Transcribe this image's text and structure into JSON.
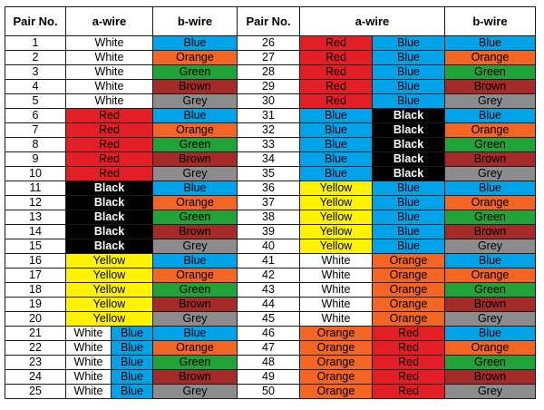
{
  "headers": [
    "Pair No.",
    "a-wire",
    "b-wire",
    "Pair No.",
    "a-wire",
    "b-wire"
  ],
  "colors": {
    "White": {
      "bg": "#ffffff",
      "fg": "#000000",
      "bold": false
    },
    "Blue": {
      "bg": "#00a2e8",
      "fg": "#000000",
      "bold": false
    },
    "Orange": {
      "bg": "#f26522",
      "fg": "#000000",
      "bold": false
    },
    "Green": {
      "bg": "#22a33a",
      "fg": "#000000",
      "bold": false
    },
    "Brown": {
      "bg": "#a52a2a",
      "fg": "#000000",
      "bold": false
    },
    "Grey": {
      "bg": "#8c8c8c",
      "fg": "#000000",
      "bold": false
    },
    "Red": {
      "bg": "#e31e24",
      "fg": "#000000",
      "bold": false
    },
    "Black": {
      "bg": "#000000",
      "fg": "#ffffff",
      "bold": true
    },
    "Yellow": {
      "bg": "#fff200",
      "fg": "#000000",
      "bold": false
    }
  },
  "pairs_left": [
    {
      "pair": "1",
      "a": [
        "White"
      ],
      "b": "Blue"
    },
    {
      "pair": "2",
      "a": [
        "White"
      ],
      "b": "Orange"
    },
    {
      "pair": "3",
      "a": [
        "White"
      ],
      "b": "Green"
    },
    {
      "pair": "4",
      "a": [
        "White"
      ],
      "b": "Brown"
    },
    {
      "pair": "5",
      "a": [
        "White"
      ],
      "b": "Grey"
    },
    {
      "pair": "6",
      "a": [
        "Red"
      ],
      "b": "Blue"
    },
    {
      "pair": "7",
      "a": [
        "Red"
      ],
      "b": "Orange"
    },
    {
      "pair": "8",
      "a": [
        "Red"
      ],
      "b": "Green"
    },
    {
      "pair": "9",
      "a": [
        "Red"
      ],
      "b": "Brown"
    },
    {
      "pair": "10",
      "a": [
        "Red"
      ],
      "b": "Grey"
    },
    {
      "pair": "11",
      "a": [
        "Black"
      ],
      "b": "Blue"
    },
    {
      "pair": "12",
      "a": [
        "Black"
      ],
      "b": "Orange"
    },
    {
      "pair": "13",
      "a": [
        "Black"
      ],
      "b": "Green"
    },
    {
      "pair": "14",
      "a": [
        "Black"
      ],
      "b": "Brown"
    },
    {
      "pair": "15",
      "a": [
        "Black"
      ],
      "b": "Grey"
    },
    {
      "pair": "16",
      "a": [
        "Yellow"
      ],
      "b": "Blue"
    },
    {
      "pair": "17",
      "a": [
        "Yellow"
      ],
      "b": "Orange"
    },
    {
      "pair": "18",
      "a": [
        "Yellow"
      ],
      "b": "Green"
    },
    {
      "pair": "19",
      "a": [
        "Yellow"
      ],
      "b": "Brown"
    },
    {
      "pair": "20",
      "a": [
        "Yellow"
      ],
      "b": "Grey"
    },
    {
      "pair": "21",
      "a": [
        "White",
        "Blue"
      ],
      "b": "Blue"
    },
    {
      "pair": "22",
      "a": [
        "White",
        "Blue"
      ],
      "b": "Orange"
    },
    {
      "pair": "23",
      "a": [
        "White",
        "Blue"
      ],
      "b": "Green"
    },
    {
      "pair": "24",
      "a": [
        "White",
        "Blue"
      ],
      "b": "Brown"
    },
    {
      "pair": "25",
      "a": [
        "White",
        "Blue"
      ],
      "b": "Grey"
    }
  ],
  "pairs_right": [
    {
      "pair": "26",
      "a": [
        "Red",
        "Blue"
      ],
      "b": "Blue"
    },
    {
      "pair": "27",
      "a": [
        "Red",
        "Blue"
      ],
      "b": "Orange"
    },
    {
      "pair": "28",
      "a": [
        "Red",
        "Blue"
      ],
      "b": "Green"
    },
    {
      "pair": "29",
      "a": [
        "Red",
        "Blue"
      ],
      "b": "Brown"
    },
    {
      "pair": "30",
      "a": [
        "Red",
        "Blue"
      ],
      "b": "Grey"
    },
    {
      "pair": "31",
      "a": [
        "Blue",
        "Black"
      ],
      "b": "Blue"
    },
    {
      "pair": "32",
      "a": [
        "Blue",
        "Black"
      ],
      "b": "Orange"
    },
    {
      "pair": "33",
      "a": [
        "Blue",
        "Black"
      ],
      "b": "Green"
    },
    {
      "pair": "34",
      "a": [
        "Blue",
        "Black"
      ],
      "b": "Brown"
    },
    {
      "pair": "35",
      "a": [
        "Blue",
        "Black"
      ],
      "b": "Grey"
    },
    {
      "pair": "36",
      "a": [
        "Yellow",
        "Blue"
      ],
      "b": "Blue"
    },
    {
      "pair": "37",
      "a": [
        "Yellow",
        "Blue"
      ],
      "b": "Orange"
    },
    {
      "pair": "38",
      "a": [
        "Yellow",
        "Blue"
      ],
      "b": "Green"
    },
    {
      "pair": "39",
      "a": [
        "Yellow",
        "Blue"
      ],
      "b": "Brown"
    },
    {
      "pair": "40",
      "a": [
        "Yellow",
        "Blue"
      ],
      "b": "Grey"
    },
    {
      "pair": "41",
      "a": [
        "White",
        "Orange"
      ],
      "b": "Blue"
    },
    {
      "pair": "42",
      "a": [
        "White",
        "Orange"
      ],
      "b": "Orange"
    },
    {
      "pair": "43",
      "a": [
        "White",
        "Orange"
      ],
      "b": "Green"
    },
    {
      "pair": "44",
      "a": [
        "White",
        "Orange"
      ],
      "b": "Brown"
    },
    {
      "pair": "45",
      "a": [
        "White",
        "Orange"
      ],
      "b": "Grey"
    },
    {
      "pair": "46",
      "a": [
        "Orange",
        "Red"
      ],
      "b": "Blue"
    },
    {
      "pair": "47",
      "a": [
        "Orange",
        "Red"
      ],
      "b": "Orange"
    },
    {
      "pair": "48",
      "a": [
        "Orange",
        "Red"
      ],
      "b": "Green"
    },
    {
      "pair": "49",
      "a": [
        "Orange",
        "Red"
      ],
      "b": "Brown"
    },
    {
      "pair": "50",
      "a": [
        "Orange",
        "Red"
      ],
      "b": "Grey"
    }
  ]
}
